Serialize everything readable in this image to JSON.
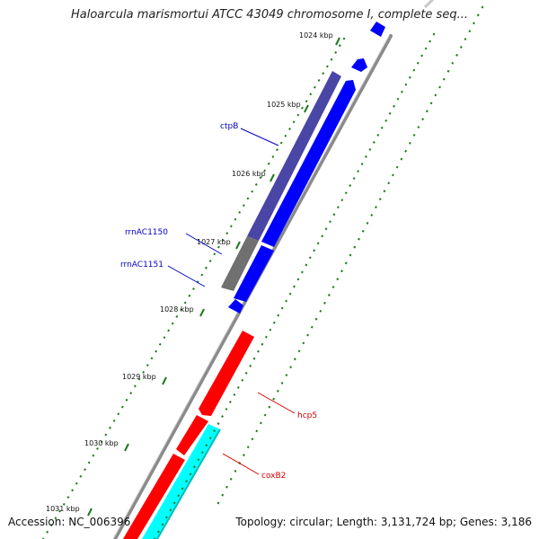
{
  "title": "Haloarcula marismortui ATCC 43049 chromosome I, complete seq...",
  "footer": {
    "accession": "Accession: NC_006396",
    "stats": "Topology: circular; Length: 3,131,724 bp; Genes: 3,186"
  },
  "scale": {
    "ticks": [
      "1024 kbp",
      "1025 kbp",
      "1026 kbp",
      "1027 kbp",
      "1028 kbp",
      "1029 kbp",
      "1030 kbp",
      "1031 kbp"
    ]
  },
  "genes": [
    {
      "name": "ctpB",
      "color": "#0000c8"
    },
    {
      "name": "rrnAC1150",
      "color": "#0000c8"
    },
    {
      "name": "rrnAC1151",
      "color": "#0000c8"
    },
    {
      "name": "hcp5",
      "color": "#d40000"
    },
    {
      "name": "coxB2",
      "color": "#d40000"
    }
  ],
  "colors": {
    "forward_cds": "#0000ff",
    "reverse_cds": "#ff0000",
    "cyan_feature": "#00ffff",
    "purple_feature": "#4a46a6",
    "gray_feature": "#707070",
    "tick_green": "#1f7a1f",
    "backbone": "#808080"
  }
}
